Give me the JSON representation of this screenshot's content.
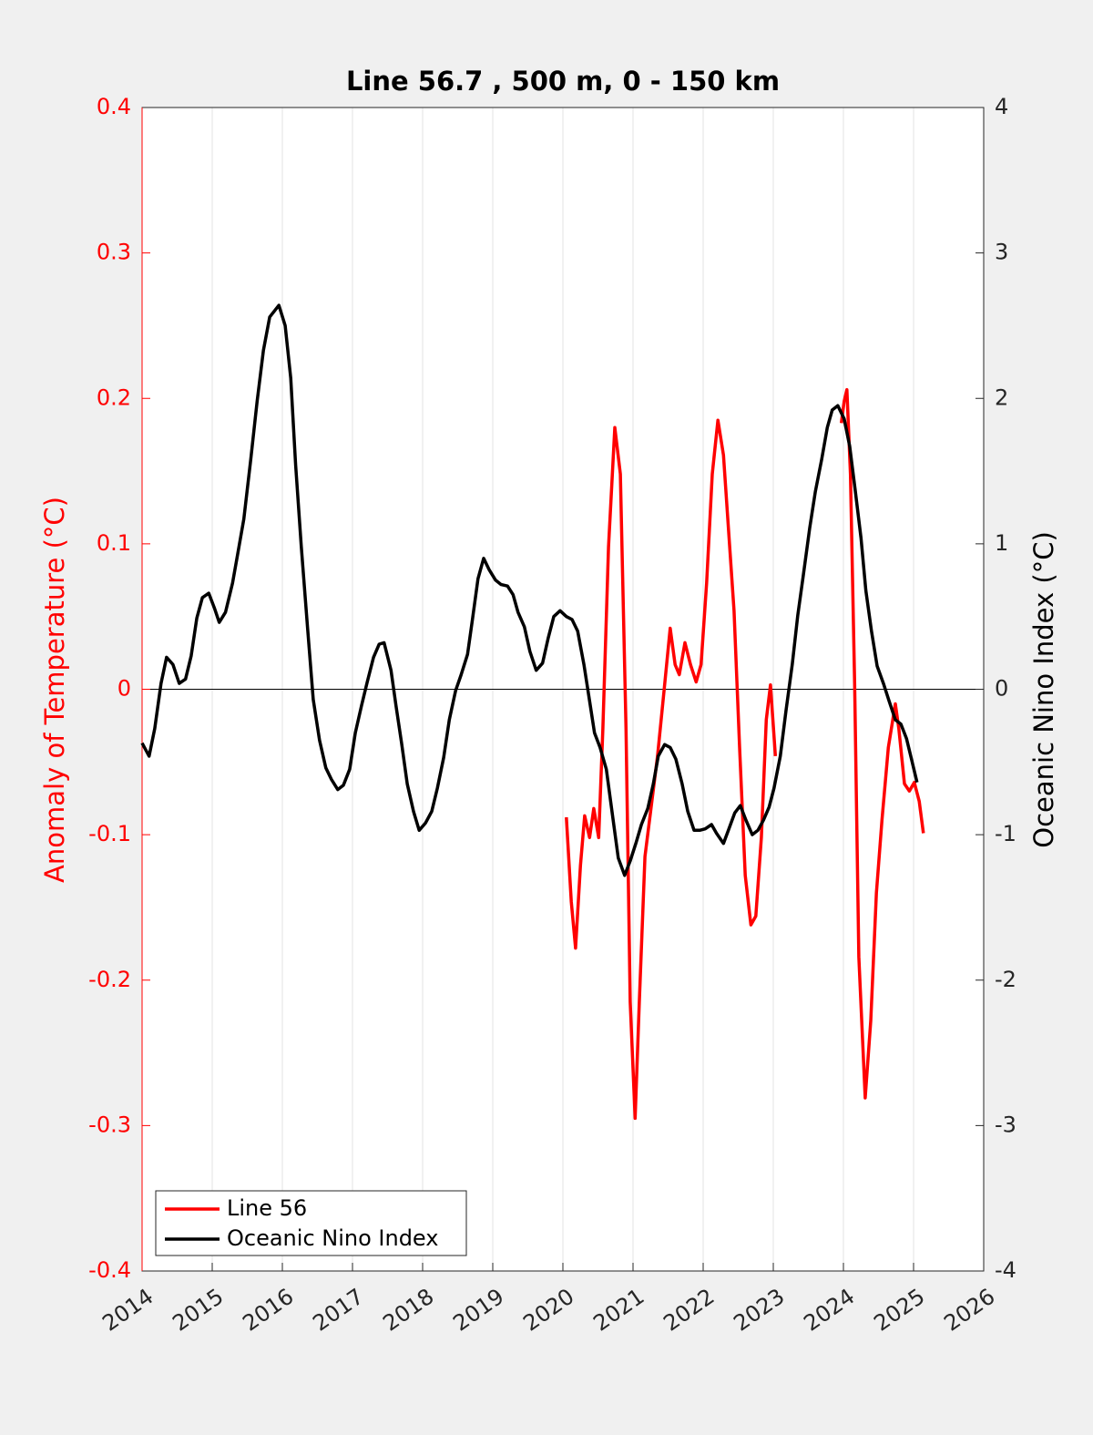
{
  "chart_data": {
    "type": "line",
    "title": "Line 56.7 , 500 m, 0 - 150 km",
    "ylabel": "Anomaly of Temperature (°C)",
    "y2label": "Oceanic Nino Index (°C)",
    "xlim": [
      2014,
      2026
    ],
    "xticks": [
      2014,
      2015,
      2016,
      2017,
      2018,
      2019,
      2020,
      2021,
      2022,
      2023,
      2024,
      2025,
      2026
    ],
    "ylim": [
      -0.4,
      0.4
    ],
    "yticks": [
      -0.4,
      -0.3,
      -0.2,
      -0.1,
      0,
      0.1,
      0.2,
      0.3,
      0.4
    ],
    "y2lim": [
      -4,
      4
    ],
    "y2ticks": [
      -4,
      -3,
      -2,
      -1,
      0,
      1,
      2,
      3,
      4
    ],
    "grid": true,
    "zero_line": true,
    "legend": "lower left",
    "series": [
      {
        "name": "Line 56",
        "color": "#ff0000",
        "axis": "y",
        "x": [
          2020.05,
          2020.12,
          2020.18,
          2020.25,
          2020.31,
          2020.38,
          2020.44,
          2020.51,
          2020.57,
          2020.65,
          2020.74,
          2020.82,
          2020.9,
          2020.96,
          2021.03,
          2021.09,
          2021.17,
          2021.25,
          2021.35,
          2021.44,
          2021.53,
          2021.6,
          2021.66,
          2021.74,
          2021.82,
          2021.9,
          2021.97,
          2022.05,
          2022.13,
          2022.21,
          2022.29,
          2022.36,
          2022.44,
          2022.52,
          2022.6,
          2022.68,
          2022.75,
          2022.83,
          2022.9,
          2022.96,
          2023.03,
          2023.5,
          2023.97,
          2024.01,
          2024.05,
          2024.1,
          2024.16,
          2024.22,
          2024.31,
          2024.39,
          2024.47,
          2024.55,
          2024.64,
          2024.74,
          2024.79,
          2024.87,
          2024.94,
          2025.01,
          2025.08,
          2025.14
        ],
        "values": [
          -0.088,
          -0.146,
          -0.178,
          -0.121,
          -0.087,
          -0.102,
          -0.082,
          -0.102,
          -0.027,
          0.098,
          0.18,
          0.148,
          -0.027,
          -0.215,
          -0.295,
          -0.215,
          -0.115,
          -0.084,
          -0.046,
          -0.002,
          0.042,
          0.017,
          0.01,
          0.032,
          0.017,
          0.005,
          0.017,
          0.073,
          0.148,
          0.185,
          0.161,
          0.111,
          0.054,
          -0.04,
          -0.128,
          -0.162,
          -0.156,
          -0.102,
          -0.021,
          0.003,
          -0.046,
          null,
          0.183,
          0.198,
          0.206,
          0.148,
          0.004,
          -0.184,
          -0.281,
          -0.228,
          -0.14,
          -0.09,
          -0.04,
          -0.01,
          -0.027,
          -0.065,
          -0.07,
          -0.064,
          -0.077,
          -0.099
        ]
      },
      {
        "name": "Oceanic Nino Index",
        "color": "#000000",
        "axis": "y2",
        "x": [
          2014.0,
          2014.1,
          2014.18,
          2014.27,
          2014.35,
          2014.44,
          2014.53,
          2014.62,
          2014.7,
          2014.78,
          2014.86,
          2014.95,
          2015.03,
          2015.1,
          2015.19,
          2015.29,
          2015.36,
          2015.45,
          2015.55,
          2015.64,
          2015.73,
          2015.82,
          2015.95,
          2016.04,
          2016.12,
          2016.19,
          2016.27,
          2016.36,
          2016.44,
          2016.53,
          2016.62,
          2016.7,
          2016.79,
          2016.87,
          2016.96,
          2017.04,
          2017.13,
          2017.21,
          2017.3,
          2017.38,
          2017.45,
          2017.55,
          2017.62,
          2017.7,
          2017.78,
          2017.87,
          2017.95,
          2018.04,
          2018.13,
          2018.21,
          2018.3,
          2018.38,
          2018.47,
          2018.55,
          2018.64,
          2018.71,
          2018.79,
          2018.87,
          2018.95,
          2019.04,
          2019.12,
          2019.21,
          2019.29,
          2019.36,
          2019.45,
          2019.53,
          2019.62,
          2019.71,
          2019.79,
          2019.87,
          2019.96,
          2020.05,
          2020.13,
          2020.21,
          2020.3,
          2020.38,
          2020.45,
          2020.53,
          2020.62,
          2020.7,
          2020.79,
          2020.88,
          2020.96,
          2021.04,
          2021.12,
          2021.21,
          2021.29,
          2021.36,
          2021.45,
          2021.53,
          2021.61,
          2021.7,
          2021.78,
          2021.87,
          2021.95,
          2022.03,
          2022.12,
          2022.19,
          2022.29,
          2022.36,
          2022.45,
          2022.53,
          2022.61,
          2022.7,
          2022.78,
          2022.86,
          2022.94,
          2023.01,
          2023.1,
          2023.18,
          2023.27,
          2023.35,
          2023.43,
          2023.52,
          2023.6,
          2023.69,
          2023.77,
          2023.84,
          2023.92,
          2024.01,
          2024.09,
          2024.17,
          2024.25,
          2024.32,
          2024.4,
          2024.48,
          2024.57,
          2024.65,
          2024.74,
          2024.82,
          2024.9,
          2024.97,
          2025.05
        ],
        "values": [
          -0.37,
          -0.46,
          -0.27,
          0.04,
          0.22,
          0.17,
          0.04,
          0.07,
          0.23,
          0.49,
          0.63,
          0.66,
          0.56,
          0.46,
          0.53,
          0.73,
          0.92,
          1.17,
          1.58,
          1.98,
          2.33,
          2.56,
          2.64,
          2.5,
          2.14,
          1.54,
          0.98,
          0.42,
          -0.07,
          -0.35,
          -0.54,
          -0.62,
          -0.69,
          -0.66,
          -0.55,
          -0.3,
          -0.11,
          0.05,
          0.22,
          0.31,
          0.32,
          0.13,
          -0.11,
          -0.37,
          -0.65,
          -0.84,
          -0.97,
          -0.92,
          -0.84,
          -0.68,
          -0.47,
          -0.21,
          -0.01,
          0.1,
          0.24,
          0.48,
          0.76,
          0.9,
          0.82,
          0.75,
          0.72,
          0.71,
          0.65,
          0.53,
          0.43,
          0.26,
          0.13,
          0.18,
          0.35,
          0.5,
          0.54,
          0.5,
          0.48,
          0.4,
          0.17,
          -0.08,
          -0.3,
          -0.4,
          -0.55,
          -0.84,
          -1.16,
          -1.28,
          -1.18,
          -1.06,
          -0.93,
          -0.82,
          -0.65,
          -0.46,
          -0.38,
          -0.4,
          -0.48,
          -0.65,
          -0.84,
          -0.97,
          -0.97,
          -0.96,
          -0.93,
          -0.99,
          -1.06,
          -0.97,
          -0.85,
          -0.8,
          -0.9,
          -1.0,
          -0.97,
          -0.9,
          -0.81,
          -0.68,
          -0.46,
          -0.15,
          0.17,
          0.51,
          0.79,
          1.11,
          1.36,
          1.58,
          1.8,
          1.92,
          1.95,
          1.86,
          1.67,
          1.36,
          1.04,
          0.68,
          0.4,
          0.16,
          0.04,
          -0.08,
          -0.21,
          -0.24,
          -0.34,
          -0.48,
          -0.64
        ]
      }
    ]
  }
}
